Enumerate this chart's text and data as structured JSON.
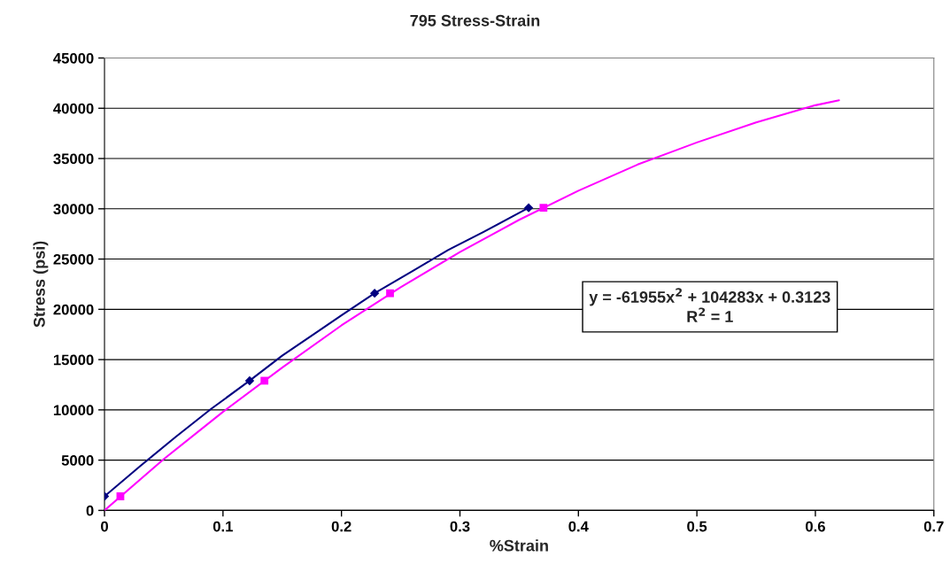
{
  "chart_data": {
    "type": "scatter",
    "title": "795 Stress-Strain",
    "xlabel": "%Strain",
    "ylabel": "Stress (psi)",
    "series": [
      {
        "type": "line",
        "color": "#000080",
        "x": [
          0,
          0.03,
          0.06,
          0.09,
          0.1225,
          0.15,
          0.18,
          0.2,
          0.228,
          0.26,
          0.29,
          0.32,
          0.358
        ],
        "values": [
          1400,
          4400,
          7300,
          10100,
          12900,
          15400,
          17800,
          19400,
          21600,
          23800,
          25900,
          27700,
          30100
        ]
      },
      {
        "type": "line",
        "color": "#ff00ff",
        "x": [
          0,
          0.05,
          0.1,
          0.15,
          0.2,
          0.25,
          0.3,
          0.35,
          0.4,
          0.45,
          0.5,
          0.55,
          0.6,
          0.62
        ],
        "values": [
          0,
          5100,
          9800,
          14200,
          18400,
          22200,
          25700,
          28900,
          31800,
          34400,
          36600,
          38600,
          40300,
          40800
        ]
      },
      {
        "marker": "diamond",
        "color": "#000080",
        "x": [
          0,
          0.1225,
          0.228,
          0.358
        ],
        "values": [
          1400,
          12900,
          21600,
          30100
        ]
      },
      {
        "marker": "square",
        "color": "#ff00ff",
        "x": [
          0.0134,
          0.135,
          0.241,
          0.3705
        ],
        "values": [
          1400,
          12900,
          21600,
          30100
        ]
      }
    ],
    "xlim": [
      0,
      0.7
    ],
    "xticks": [
      0,
      0.1,
      0.2,
      0.3,
      0.4,
      0.5,
      0.6,
      0.7
    ],
    "ylim": [
      0,
      45000
    ],
    "yticks": [
      0,
      5000,
      10000,
      15000,
      20000,
      25000,
      30000,
      35000,
      40000,
      45000
    ],
    "grid": "y",
    "legend": false,
    "annotations": [
      "y = -61955x$^{2}$ + 104283x + 0.3123\nR$^{2}$ = 1"
    ]
  }
}
